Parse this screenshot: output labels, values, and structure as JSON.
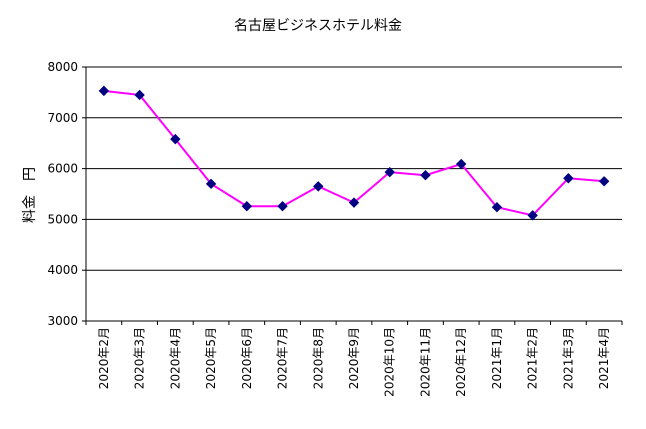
{
  "chart_data": {
    "type": "line",
    "title": "名古屋ビジネスホテル料金",
    "ylabel": "料金　円",
    "xlabel": "",
    "ylim": [
      3000,
      8000
    ],
    "yticks": [
      3000,
      4000,
      5000,
      6000,
      7000,
      8000
    ],
    "grid": true,
    "legend": "none",
    "categories": [
      "2020年2月",
      "2020年3月",
      "2020年4月",
      "2020年5月",
      "2020年6月",
      "2020年7月",
      "2020年8月",
      "2020年9月",
      "2020年10月",
      "2020年11月",
      "2020年12月",
      "2021年1月",
      "2021年2月",
      "2021年3月",
      "2021年4月"
    ],
    "series": [
      {
        "values": [
          7530,
          7450,
          6580,
          5700,
          5260,
          5260,
          5650,
          5330,
          5930,
          5870,
          6090,
          5240,
          5080,
          5810,
          5750
        ],
        "line_color": "#ff00ff",
        "marker_color": "#000080"
      }
    ]
  }
}
